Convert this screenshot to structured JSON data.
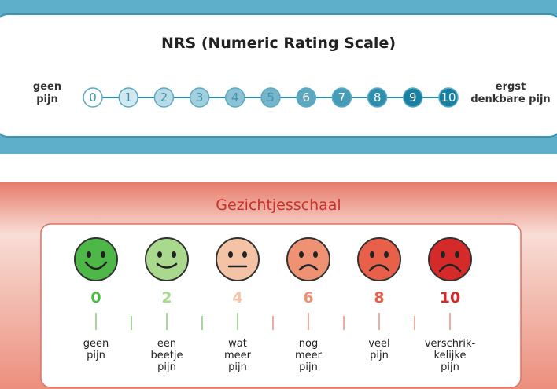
{
  "nrs": {
    "title": "NRS (Numeric Rating Scale)",
    "left_label": [
      "geen",
      "pijn"
    ],
    "right_label": [
      "ergst",
      "denkbare pijn"
    ],
    "scale": [
      0,
      1,
      2,
      3,
      4,
      5,
      6,
      7,
      8,
      9,
      10
    ]
  },
  "faces": {
    "title": "Gezichtjesschaal",
    "items": [
      {
        "number": 0,
        "label": [
          "geen",
          "pijn"
        ],
        "color": "#4db848"
      },
      {
        "number": 2,
        "label": [
          "een",
          "beetje",
          "pijn"
        ],
        "color": "#a8d98c"
      },
      {
        "number": 4,
        "label": [
          "wat",
          "meer",
          "pijn"
        ],
        "color": "#f4c2a4"
      },
      {
        "number": 6,
        "label": [
          "nog",
          "meer",
          "pijn"
        ],
        "color": "#ef9274"
      },
      {
        "number": 8,
        "label": [
          "veel",
          "pijn"
        ],
        "color": "#e8604a"
      },
      {
        "number": 10,
        "label": [
          "verschrik-",
          "kelijke",
          "pijn"
        ],
        "color": "#d42a2a"
      }
    ]
  }
}
